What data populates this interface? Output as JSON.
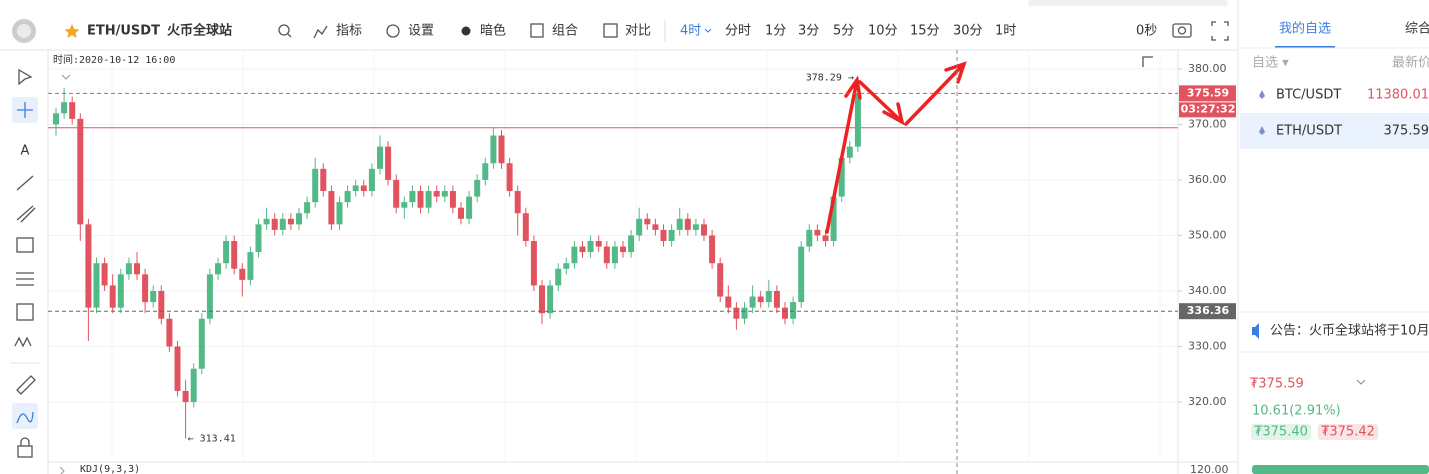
{
  "header": {
    "pair": "ETH/USDT",
    "exchange": "火币全球站"
  },
  "toolbar": {
    "items": [
      "指标",
      "设置",
      "暗色",
      "组合",
      "对比"
    ],
    "periods": [
      "4时",
      "分时",
      "1分",
      "3分",
      "5分",
      "10分",
      "15分",
      "30分",
      "1时"
    ],
    "timer": "0秒"
  },
  "chart_data": {
    "type": "candlestick",
    "time_label": "时间:2020-10-12 16:00",
    "indicator_label": "KDJ(9,3,3)",
    "indicator_axis_label": "120.00",
    "up_color": "#53b987",
    "down_color": "#e0535f",
    "ylim": [
      309.2,
      383.4
    ],
    "yticks": [
      {
        "value": 320,
        "label": "320.00"
      },
      {
        "value": 330,
        "label": "330.00"
      },
      {
        "value": 340,
        "label": "340.00"
      },
      {
        "value": 350,
        "label": "350.00"
      },
      {
        "value": 360,
        "label": "360.00"
      },
      {
        "value": 370,
        "label": "370.00"
      },
      {
        "value": 380,
        "label": "380.00"
      }
    ],
    "price_lines": [
      375.59,
      336.36
    ],
    "mark_line": 369.4,
    "countdown": "03:27:32",
    "high_label": "378.29 →",
    "low_label": "← 313.41",
    "candles": [
      [
        370,
        373,
        368,
        372
      ],
      [
        372,
        376.6,
        371,
        374
      ],
      [
        374,
        375,
        370,
        371
      ],
      [
        371,
        372,
        349,
        352
      ],
      [
        352,
        353,
        331,
        337
      ],
      [
        337,
        346,
        336,
        345
      ],
      [
        345,
        346,
        340,
        341
      ],
      [
        341,
        343,
        336,
        337
      ],
      [
        337,
        344,
        336,
        343
      ],
      [
        343,
        346,
        342,
        345
      ],
      [
        345,
        347,
        342,
        343
      ],
      [
        343,
        344,
        336,
        338
      ],
      [
        338,
        341,
        337,
        340
      ],
      [
        340,
        341,
        334,
        335
      ],
      [
        335,
        336,
        329,
        330
      ],
      [
        330,
        331,
        321,
        322
      ],
      [
        322,
        324,
        313.41,
        320
      ],
      [
        320,
        327,
        319,
        326
      ],
      [
        326,
        336,
        325,
        335
      ],
      [
        335,
        344,
        334,
        343
      ],
      [
        343,
        346,
        342,
        345
      ],
      [
        345,
        350,
        344,
        349
      ],
      [
        349,
        350,
        343,
        344
      ],
      [
        344,
        345,
        339,
        342
      ],
      [
        342,
        348,
        341,
        347
      ],
      [
        347,
        353,
        346,
        352
      ],
      [
        352,
        355,
        351,
        353
      ],
      [
        353,
        354,
        350,
        351
      ],
      [
        351,
        354,
        350,
        353
      ],
      [
        353,
        354,
        351,
        352
      ],
      [
        352,
        355,
        351,
        354
      ],
      [
        354,
        357,
        353,
        356
      ],
      [
        356,
        364,
        355,
        362
      ],
      [
        362,
        363,
        357,
        358
      ],
      [
        358,
        359,
        351,
        352
      ],
      [
        352,
        357,
        351,
        356
      ],
      [
        356,
        359,
        355,
        358
      ],
      [
        358,
        360,
        357,
        359
      ],
      [
        359,
        360,
        357,
        358
      ],
      [
        358,
        363,
        357,
        362
      ],
      [
        362,
        368,
        361,
        366
      ],
      [
        366,
        367,
        359,
        360
      ],
      [
        360,
        361,
        354,
        355
      ],
      [
        355,
        357,
        353,
        356
      ],
      [
        356,
        359,
        355,
        358
      ],
      [
        358,
        359,
        354,
        355
      ],
      [
        355,
        359,
        354,
        358
      ],
      [
        358,
        359,
        356,
        357
      ],
      [
        357,
        359,
        356,
        358
      ],
      [
        358,
        359,
        354,
        355
      ],
      [
        355,
        356,
        352,
        353
      ],
      [
        353,
        358,
        352,
        357
      ],
      [
        357,
        361,
        356,
        360
      ],
      [
        360,
        364,
        359,
        363
      ],
      [
        363,
        369.5,
        362,
        368
      ],
      [
        368,
        369,
        362,
        363
      ],
      [
        363,
        364,
        357,
        358
      ],
      [
        358,
        359,
        350,
        354
      ],
      [
        354,
        355,
        348,
        349
      ],
      [
        349,
        350,
        340,
        341
      ],
      [
        341,
        342,
        334,
        336
      ],
      [
        336,
        342,
        335,
        341
      ],
      [
        341,
        345,
        340,
        344
      ],
      [
        344,
        346,
        343,
        345
      ],
      [
        345,
        349,
        344,
        348
      ],
      [
        348,
        349,
        346,
        347
      ],
      [
        347,
        350,
        346,
        349
      ],
      [
        349,
        350,
        347,
        348
      ],
      [
        348,
        349,
        344,
        345
      ],
      [
        345,
        349,
        344,
        348
      ],
      [
        348,
        349,
        346,
        347
      ],
      [
        347,
        351,
        346,
        350
      ],
      [
        350,
        355,
        349,
        353
      ],
      [
        353,
        354,
        351,
        352
      ],
      [
        352,
        353,
        350,
        351
      ],
      [
        351,
        352,
        348,
        349
      ],
      [
        349,
        352,
        348,
        351
      ],
      [
        351,
        355,
        350,
        353
      ],
      [
        353,
        354,
        350,
        351
      ],
      [
        351,
        353,
        350,
        352
      ],
      [
        352,
        353,
        349,
        350
      ],
      [
        350,
        351,
        344,
        345
      ],
      [
        345,
        346,
        338,
        339
      ],
      [
        339,
        341,
        336,
        337
      ],
      [
        337,
        338,
        333,
        335
      ],
      [
        335,
        338,
        334,
        337
      ],
      [
        337,
        341,
        336,
        339
      ],
      [
        339,
        340,
        337,
        338
      ],
      [
        338,
        342,
        337,
        340
      ],
      [
        340,
        341,
        336,
        337
      ],
      [
        337,
        338,
        334,
        335
      ],
      [
        335,
        339,
        334,
        338
      ],
      [
        338,
        349,
        337,
        348
      ],
      [
        348,
        352,
        347,
        351
      ],
      [
        351,
        352,
        349,
        350
      ],
      [
        350,
        351,
        348,
        349
      ],
      [
        349,
        358,
        348,
        357
      ],
      [
        357,
        365,
        356,
        364
      ],
      [
        364,
        367,
        363,
        366
      ],
      [
        366,
        378.29,
        365,
        375.59
      ]
    ]
  },
  "watchlist": {
    "tabs": [
      "我的自选",
      "综合"
    ],
    "filter": "自选 ▾",
    "price_header": "最新价",
    "rows": [
      [
        "BTC/USDT",
        "11380.01"
      ],
      [
        "ETH/USDT",
        "375.59"
      ]
    ],
    "notice": "公告：火币全球站将于10月",
    "price": "₮375.59",
    "change": "10.61(2.91%)",
    "bid": "₮375.40",
    "ask": "₮375.42"
  }
}
